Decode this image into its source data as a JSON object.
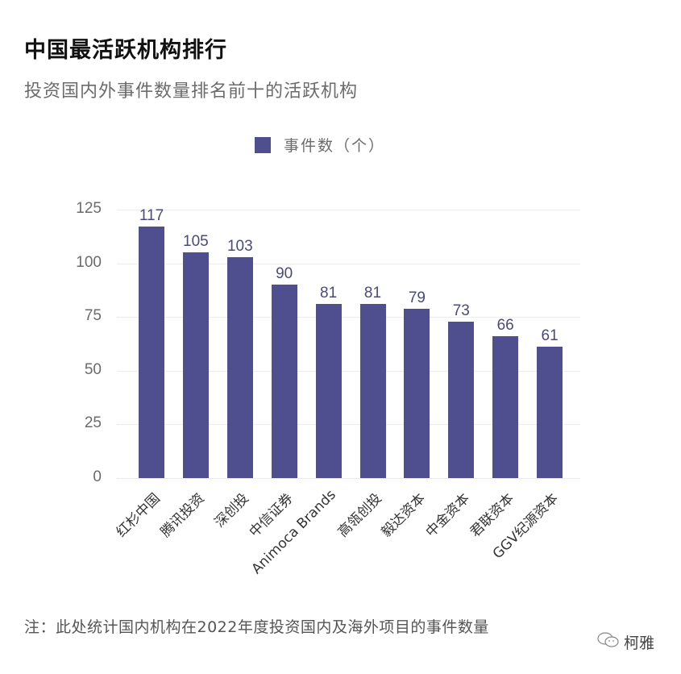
{
  "header": {
    "title": "中国最活跃机构排行",
    "subtitle": "投资国内外事件数量排名前十的活跃机构"
  },
  "legend": {
    "label": "事件数（个）",
    "color": "#4f4f8f"
  },
  "footer": {
    "note": "注：此处统计国内机构在2022年度投资国内及海外项目的事件数量",
    "watermark": "柯雅"
  },
  "chart_data": {
    "type": "bar",
    "title": "中国最活跃机构排行",
    "subtitle": "投资国内外事件数量排名前十的活跃机构",
    "xlabel": "",
    "ylabel": "",
    "ylim": [
      0,
      125
    ],
    "yticks": [
      0,
      25,
      50,
      75,
      100,
      125
    ],
    "grid": true,
    "legend_position": "top",
    "categories": [
      "红杉中国",
      "腾讯投资",
      "深创投",
      "中信证券",
      "Animoca Brands",
      "高瓴创投",
      "毅达资本",
      "中金资本",
      "君联资本",
      "GGV纪源资本"
    ],
    "series": [
      {
        "name": "事件数（个）",
        "color": "#4f4f8f",
        "values": [
          117,
          105,
          103,
          90,
          81,
          81,
          79,
          73,
          66,
          61
        ]
      }
    ],
    "annotations": "note: 此处统计国内机构在2022年度投资国内及海外项目的事件数量"
  }
}
